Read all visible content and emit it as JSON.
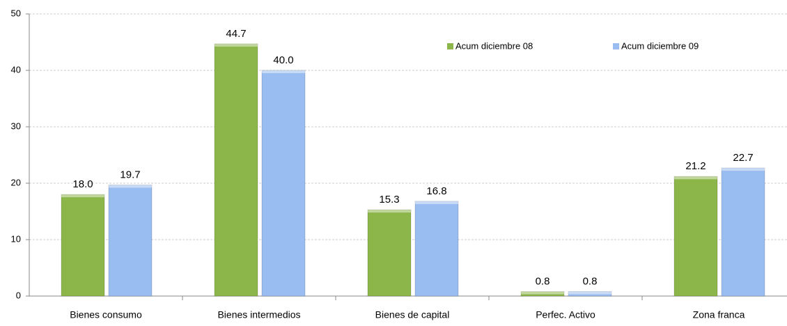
{
  "chart_data": {
    "type": "bar",
    "categories": [
      "Bienes consumo",
      "Bienes intermedios",
      "Bienes de capital",
      "Perfec. Activo",
      "Zona franca"
    ],
    "series": [
      {
        "name": "Acum diciembre 08",
        "color": "#8cb54a",
        "values": [
          18.0,
          44.7,
          15.3,
          0.8,
          21.2
        ],
        "value_labels": [
          "18.0",
          "44.7",
          "15.3",
          "0.8",
          "21.2"
        ]
      },
      {
        "name": "Acum diciembre 09",
        "color": "#99bdf0",
        "values": [
          19.7,
          40.0,
          16.8,
          0.8,
          22.7
        ],
        "value_labels": [
          "19.7",
          "40.0",
          "16.8",
          "0.8",
          "22.7"
        ]
      }
    ],
    "ylim": [
      0,
      50
    ],
    "yticks": [
      0,
      10,
      20,
      30,
      40,
      50
    ],
    "grid": true,
    "legend": "top-right"
  }
}
